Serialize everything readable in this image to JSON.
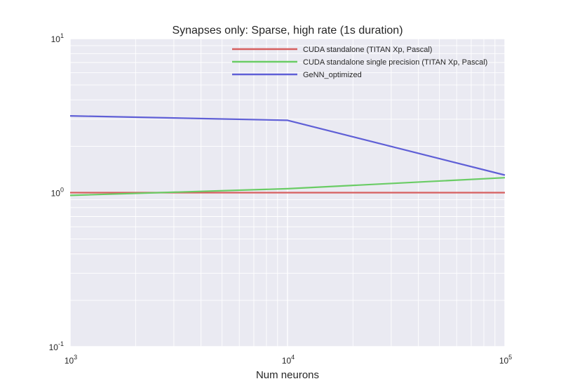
{
  "chart_data": {
    "type": "line",
    "title": "Synapses only: Sparse, high rate (1s duration)",
    "xlabel": "Num neurons",
    "ylabel": "",
    "xscale": "log",
    "yscale": "log",
    "xlim": [
      1000,
      100000
    ],
    "ylim": [
      0.1,
      10
    ],
    "x_ticks": [
      {
        "base": "10",
        "exp": "3"
      },
      {
        "base": "10",
        "exp": "4"
      },
      {
        "base": "10",
        "exp": "5"
      }
    ],
    "y_ticks": [
      {
        "base": "10",
        "exp": "-1"
      },
      {
        "base": "10",
        "exp": "0"
      },
      {
        "base": "10",
        "exp": "1"
      }
    ],
    "grid": true,
    "legend_position": "top-right",
    "series": [
      {
        "name": "CUDA standalone (TITAN Xp, Pascal)",
        "color": "#d65f5f",
        "x": [
          1000,
          10000,
          100000
        ],
        "y": [
          1.0,
          1.0,
          1.0
        ]
      },
      {
        "name": "CUDA standalone single precision (TITAN Xp, Pascal)",
        "color": "#6acc65",
        "x": [
          1000,
          10000,
          100000
        ],
        "y": [
          0.96,
          1.06,
          1.25
        ]
      },
      {
        "name": "GeNN_optimized",
        "color": "#5f5fd6",
        "x": [
          1000,
          10000,
          100000
        ],
        "y": [
          3.15,
          2.95,
          1.3
        ]
      }
    ]
  }
}
